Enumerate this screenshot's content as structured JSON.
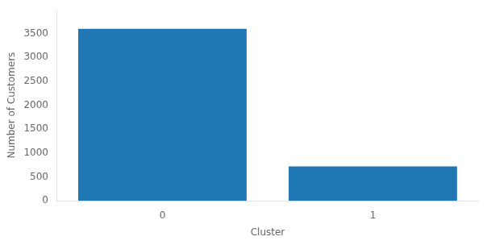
{
  "chart_data": {
    "type": "bar",
    "categories": [
      "0",
      "1"
    ],
    "values": [
      3600,
      720
    ],
    "color": "#1f77b4",
    "xlabel": "Cluster",
    "ylabel": "Number of Customers",
    "ylim": [
      0,
      4000
    ],
    "yticks": [
      0,
      500,
      1000,
      1500,
      2000,
      2500,
      3000,
      3500
    ],
    "grid": false
  }
}
